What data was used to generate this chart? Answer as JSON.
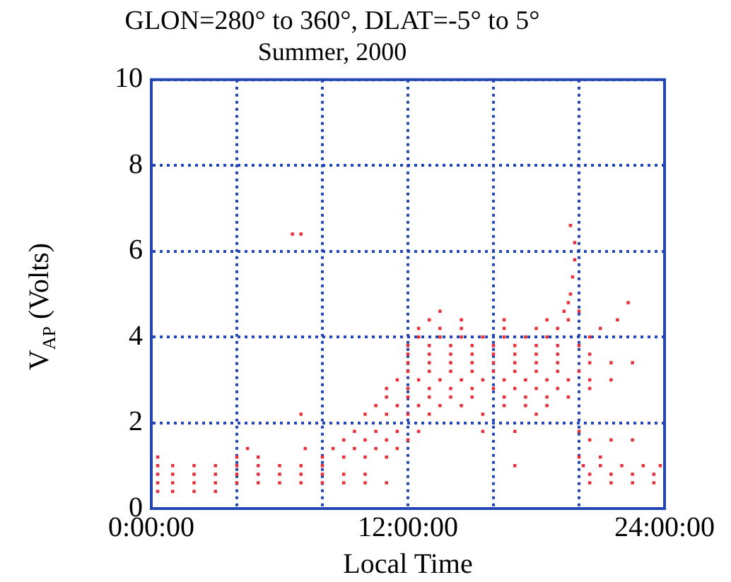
{
  "chart_data": {
    "type": "scatter",
    "title": "GLON=280° to 360°, DLAT=-5° to 5°",
    "subtitle": "Summer, 2000",
    "xlabel": "Local Time",
    "ylabel": "V$_{AP}$ (Volts)",
    "xlim": [
      0,
      24
    ],
    "xticks": [
      {
        "value": 0,
        "label": "0:00:00"
      },
      {
        "value": 4,
        "label": null
      },
      {
        "value": 8,
        "label": null
      },
      {
        "value": 12,
        "label": "12:00:00"
      },
      {
        "value": 16,
        "label": null
      },
      {
        "value": 20,
        "label": null
      },
      {
        "value": 24,
        "label": "24:00:00"
      }
    ],
    "ylim": [
      0,
      10
    ],
    "yticks": [
      0,
      2,
      4,
      6,
      8,
      10
    ],
    "grid": true,
    "marker": "square",
    "legend": false,
    "series": [
      {
        "color": "#e8303a",
        "x": [
          0.3,
          1,
          2,
          3,
          0.3,
          1,
          2,
          3,
          4,
          5,
          6,
          7,
          8,
          9,
          10,
          11,
          20.5,
          21.5,
          22.5,
          23.5,
          0.3,
          1,
          2,
          3,
          4,
          5,
          6,
          7,
          8,
          9,
          10,
          20.5,
          21.5,
          22.5,
          23.5,
          0.3,
          1,
          2,
          3,
          4,
          5,
          6,
          7,
          8,
          17,
          20.2,
          21,
          22,
          23,
          23.8,
          0.3,
          4,
          5,
          8,
          9,
          10,
          11,
          20,
          21,
          4.5,
          7.2,
          8.5,
          9.5,
          10.5,
          11.5,
          9,
          10,
          11,
          12,
          20.5,
          21.5,
          22.5,
          9.5,
          10.5,
          11.5,
          12.5,
          15.5,
          17,
          20,
          7,
          10,
          11,
          12,
          13,
          15.5,
          18,
          10.5,
          11.5,
          12.5,
          13.5,
          14.5,
          16.5,
          17.5,
          18.5,
          11,
          12,
          13,
          14,
          15,
          16.5,
          17.5,
          18.5,
          19.5,
          11,
          12,
          13,
          14,
          15,
          16,
          17,
          18,
          19,
          20.5,
          11.5,
          12.5,
          13.5,
          14.5,
          15.5,
          16.5,
          17.5,
          18.5,
          19.5,
          20.5,
          21.5,
          12,
          13,
          14,
          15,
          16,
          17,
          18,
          19,
          20,
          12,
          13,
          14,
          15,
          16,
          17,
          18,
          19,
          20.5,
          21.5,
          22.5,
          12,
          13,
          14,
          15,
          16,
          17,
          18,
          19,
          20.5,
          12,
          13,
          14,
          15,
          16,
          17,
          18,
          19,
          20,
          12.5,
          13.5,
          14.5,
          15.5,
          16.5,
          17.5,
          18.5,
          20.5,
          12.5,
          13.5,
          14.5,
          16.5,
          18,
          19,
          21,
          13,
          14.5,
          16.5,
          18.5,
          19.5,
          21.8,
          13.5,
          19.3,
          20,
          19.5,
          22.3,
          19.6,
          19.7,
          19.8,
          19.8,
          19.6,
          6.6,
          7
        ],
        "values": [
          0.4,
          0.4,
          0.4,
          0.4,
          0.6,
          0.6,
          0.6,
          0.6,
          0.6,
          0.6,
          0.6,
          0.6,
          0.6,
          0.6,
          0.6,
          0.6,
          0.6,
          0.6,
          0.6,
          0.6,
          0.8,
          0.8,
          0.8,
          0.8,
          0.8,
          0.8,
          0.8,
          0.8,
          0.8,
          0.8,
          0.8,
          0.8,
          0.8,
          0.8,
          0.8,
          1,
          1,
          1,
          1,
          1,
          1,
          1,
          1,
          1,
          1,
          1,
          1,
          1,
          1,
          1,
          1.2,
          1.2,
          1.2,
          1.2,
          1.2,
          1.2,
          1.2,
          1.2,
          1.2,
          1.4,
          1.4,
          1.4,
          1.4,
          1.4,
          1.4,
          1.6,
          1.6,
          1.6,
          1.6,
          1.6,
          1.6,
          1.6,
          1.8,
          1.8,
          1.8,
          1.8,
          1.8,
          1.8,
          1.8,
          2.2,
          2.2,
          2.2,
          2.2,
          2.2,
          2.2,
          2.2,
          2.4,
          2.4,
          2.4,
          2.4,
          2.4,
          2.4,
          2.4,
          2.4,
          2.6,
          2.6,
          2.6,
          2.6,
          2.6,
          2.6,
          2.6,
          2.6,
          2.6,
          2.8,
          2.8,
          2.8,
          2.8,
          2.8,
          2.8,
          2.8,
          2.8,
          2.8,
          2.8,
          3,
          3,
          3,
          3,
          3,
          3,
          3,
          3,
          3,
          3,
          3,
          3.2,
          3.2,
          3.2,
          3.2,
          3.2,
          3.2,
          3.2,
          3.2,
          3.2,
          3.4,
          3.4,
          3.4,
          3.4,
          3.4,
          3.4,
          3.4,
          3.4,
          3.4,
          3.4,
          3.4,
          3.6,
          3.6,
          3.6,
          3.6,
          3.6,
          3.6,
          3.6,
          3.6,
          3.6,
          3.8,
          3.8,
          3.8,
          3.8,
          3.8,
          3.8,
          3.8,
          3.8,
          3.8,
          4,
          4,
          4,
          4,
          4,
          4,
          4,
          4,
          4.2,
          4.2,
          4.2,
          4.2,
          4.2,
          4.2,
          4.2,
          4.4,
          4.4,
          4.4,
          4.4,
          4.4,
          4.4,
          4.6,
          4.6,
          4.6,
          4.8,
          4.8,
          5,
          5.4,
          5.8,
          6.2,
          6.6,
          6.4,
          6.4
        ]
      }
    ]
  }
}
